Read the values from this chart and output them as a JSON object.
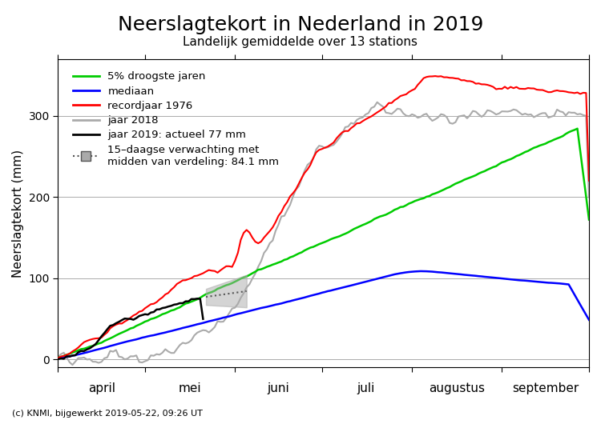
{
  "title": "Neerslagtekort in Nederland in 2019",
  "subtitle": "Landelijk gemiddelde over 13 stations",
  "ylabel": "Neerslagtekort (mm)",
  "footer": "(c) KNMI, bijgewerkt 2019-05-22, 09:26 UT",
  "ylim": [
    -10,
    370
  ],
  "yticks": [
    0,
    100,
    200,
    300
  ],
  "months": [
    "april",
    "mei",
    "juni",
    "juli",
    "augustus",
    "september"
  ],
  "legend": {
    "line1": "5% droogste jaren",
    "line2": "mediaan",
    "line3": "recordjaar 1976",
    "line4": "jaar 2018",
    "line5": "jaar 2019: actueel 77 mm",
    "line6": "15–daagse verwachting met\nmidden van verdeling: 84.1 mm"
  },
  "colors": {
    "green": "#00cc00",
    "blue": "#0000ff",
    "red": "#ff0000",
    "gray": "#aaaaaa",
    "black": "#000000",
    "forecast_fill": "#aaaaaa",
    "forecast_line": "#555555",
    "background": "#ffffff",
    "grid": "#aaaaaa"
  }
}
